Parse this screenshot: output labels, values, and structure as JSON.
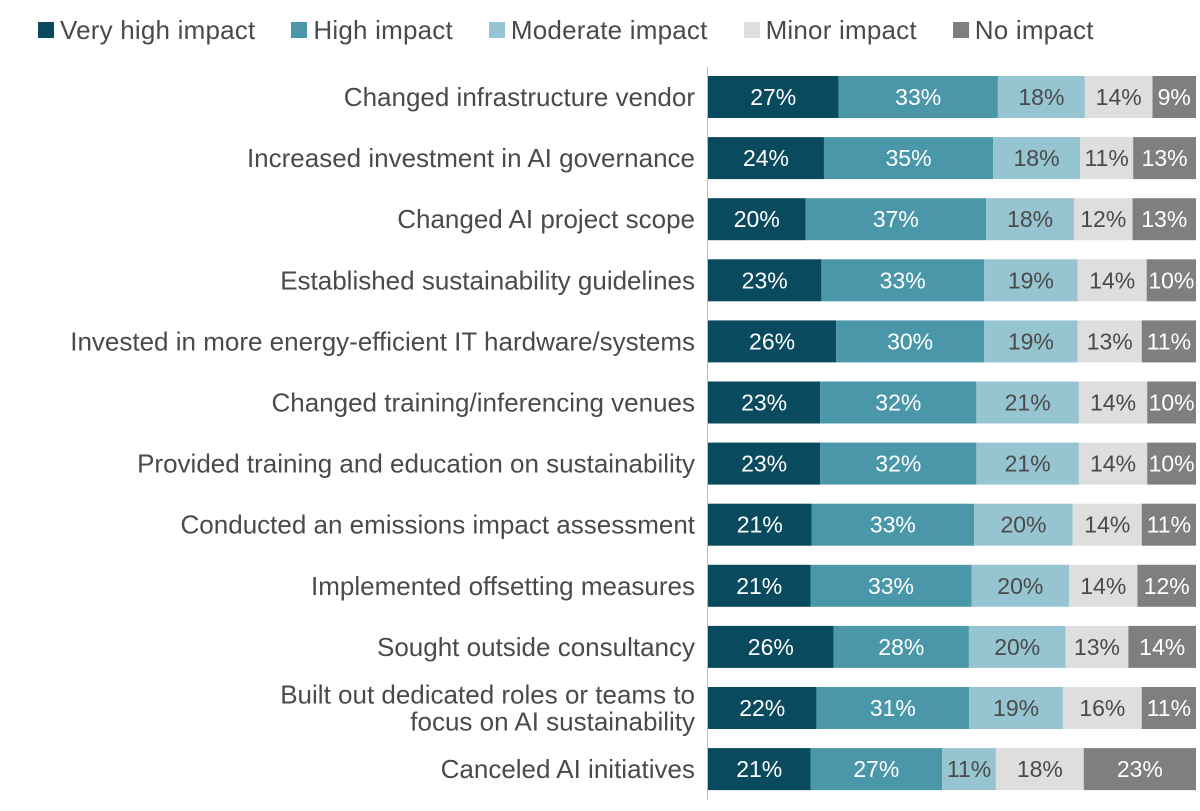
{
  "chart_data": {
    "type": "bar",
    "orientation": "horizontal",
    "stacked": true,
    "legend_position": "top",
    "grid": false,
    "xlim": [
      0,
      100
    ],
    "categories": [
      [
        "Changed infrastructure vendor"
      ],
      [
        "Increased investment in AI governance"
      ],
      [
        "Changed AI project scope"
      ],
      [
        "Established sustainability guidelines"
      ],
      [
        "Invested in more energy-efficient IT hardware/systems"
      ],
      [
        "Changed training/inferencing venues"
      ],
      [
        "Provided training and education on sustainability"
      ],
      [
        "Conducted an emissions impact assessment"
      ],
      [
        "Implemented offsetting measures"
      ],
      [
        "Sought outside consultancy"
      ],
      [
        "Built out dedicated roles or teams to",
        "focus on AI sustainability"
      ],
      [
        "Canceled AI initiatives"
      ]
    ],
    "series": [
      {
        "name": "Very high impact",
        "color": "#0a4a5e",
        "text_color": "#ffffff",
        "values": [
          27,
          24,
          20,
          23,
          26,
          23,
          23,
          21,
          21,
          26,
          22,
          21
        ]
      },
      {
        "name": "High impact",
        "color": "#4a97aa",
        "text_color": "#ffffff",
        "values": [
          33,
          35,
          37,
          33,
          30,
          32,
          32,
          33,
          33,
          28,
          31,
          27
        ]
      },
      {
        "name": "Moderate impact",
        "color": "#96c5d1",
        "text_color": "#4a4a4a",
        "values": [
          18,
          18,
          18,
          19,
          19,
          21,
          21,
          20,
          20,
          20,
          19,
          11
        ]
      },
      {
        "name": "Minor impact",
        "color": "#dedede",
        "text_color": "#4a4a4a",
        "values": [
          14,
          11,
          12,
          14,
          13,
          14,
          14,
          14,
          14,
          13,
          16,
          18
        ]
      },
      {
        "name": "No impact",
        "color": "#7f7f7f",
        "text_color": "#ffffff",
        "values": [
          9,
          13,
          13,
          10,
          11,
          10,
          10,
          11,
          12,
          14,
          11,
          23
        ]
      }
    ],
    "value_suffix": "%"
  }
}
